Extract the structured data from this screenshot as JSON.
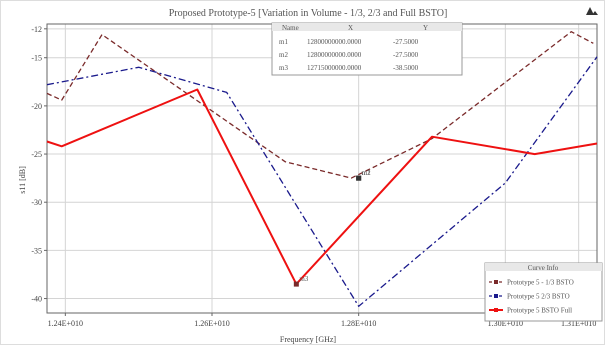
{
  "chart_data": {
    "type": "line",
    "title": "Proposed Prototype-5 [Variation in Volume - 1/3, 2/3 and Full BSTO]",
    "xlabel": "Frequency [GHz]",
    "ylabel": "s11 [dB]",
    "xlim": [
      12375000000.0,
      13125000000.0
    ],
    "ylim": [
      -41.5,
      -11.5
    ],
    "x_ticks": [
      {
        "v": 12400000000.0,
        "label": "1.24E+010"
      },
      {
        "v": 12600000000.0,
        "label": "1.26E+010"
      },
      {
        "v": 12800000000.0,
        "label": "1.28E+010"
      },
      {
        "v": 13000000000.0,
        "label": "1.30E+010"
      },
      {
        "v": 13100000000.0,
        "label": "1.31E+010"
      }
    ],
    "y_ticks": [
      {
        "v": -12,
        "label": "-12"
      },
      {
        "v": -15,
        "label": "-15"
      },
      {
        "v": -20,
        "label": "-20"
      },
      {
        "v": -25,
        "label": "-25"
      },
      {
        "v": -30,
        "label": "-30"
      },
      {
        "v": -35,
        "label": "-35"
      },
      {
        "v": -40,
        "label": "-40"
      }
    ],
    "grid": true,
    "series": [
      {
        "name": "Prototype 5 - 1/3 BSTO",
        "color": "#7a2a2a",
        "dash": "5,3",
        "width": 1.3,
        "x": [
          12375000000.0,
          12395000000.0,
          12450000000.0,
          12700000000.0,
          12790000000.0,
          12900000000.0,
          13090000000.0,
          13120000000.0
        ],
        "y": [
          -18.7,
          -19.4,
          -12.6,
          -25.8,
          -27.5,
          -23.4,
          -12.3,
          -13.5
        ]
      },
      {
        "name": "Prototype 5 2/3 BSTO",
        "color": "#1a1a8c",
        "dash": "7,3,2,3",
        "width": 1.3,
        "x": [
          12375000000.0,
          12500000000.0,
          12620000000.0,
          12800000000.0,
          13000000000.0,
          13125000000.0
        ],
        "y": [
          -17.8,
          -16.0,
          -18.6,
          -40.8,
          -28.0,
          -14.9
        ]
      },
      {
        "name": "Prototype 5 BSTO Full",
        "color": "#ee1111",
        "dash": "",
        "width": 2.0,
        "x": [
          12375000000.0,
          12395000000.0,
          12580000000.0,
          12715000000.0,
          12900000000.0,
          13040000000.0,
          13125000000.0
        ],
        "y": [
          -23.7,
          -24.2,
          -18.3,
          -38.5,
          -23.2,
          -25.0,
          -23.9
        ]
      }
    ],
    "markers": [
      {
        "id": "m1",
        "x": 12800000000.0,
        "y": -27.5,
        "color": "#333333"
      },
      {
        "id": "m2",
        "x": 12800000000.0,
        "y": -27.5,
        "color": "#333333"
      },
      {
        "id": "m3",
        "x": 12715000000.0,
        "y": -38.5,
        "color": "#7a2a2a"
      }
    ],
    "marker_table": {
      "header": [
        "Name",
        "X",
        "Y"
      ],
      "rows": [
        {
          "name": "m1",
          "x": "12800000000.0000",
          "y": "-27.5000"
        },
        {
          "name": "m2",
          "x": "12800000000.0000",
          "y": "-27.5000"
        },
        {
          "name": "m3",
          "x": "12715000000.0000",
          "y": "-38.5000"
        }
      ]
    },
    "legend": {
      "title": "Curve Info",
      "placement": "bottom-right"
    }
  }
}
